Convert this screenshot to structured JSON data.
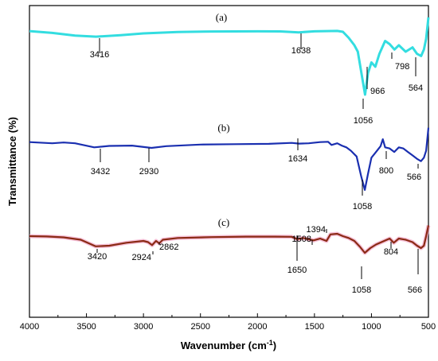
{
  "chart_data": {
    "type": "line",
    "title": "",
    "xlabel": "Wavenumber (cm",
    "xlabel_sup": "-1",
    "xlabel_close": ")",
    "ylabel": "Transmittance (%)",
    "xlim": [
      4000,
      500
    ],
    "x_reversed": true,
    "x_ticks": [
      "4000",
      "3500",
      "3000",
      "2500",
      "2000",
      "1500",
      "1000",
      "500"
    ],
    "y_ticks_labeled": false,
    "grid": false,
    "legend": "none",
    "series": [
      {
        "label": "(a)",
        "color": "#33dde0",
        "x": [
          4000,
          3800,
          3600,
          3416,
          3200,
          3000,
          2700,
          2400,
          2000,
          1800,
          1638,
          1500,
          1300,
          1250,
          1200,
          1150,
          1120,
          1080,
          1056,
          1030,
          1000,
          966,
          930,
          880,
          840,
          798,
          760,
          700,
          640,
          600,
          564,
          540,
          520,
          500
        ],
        "y": [
          0.8,
          2.5,
          5.0,
          6.0,
          4.6,
          3.0,
          1.7,
          1.2,
          1.0,
          1.1,
          2.0,
          1.0,
          0.7,
          1.5,
          7.0,
          14.0,
          20.0,
          45.0,
          60.0,
          40.0,
          30.0,
          34.0,
          22.0,
          10.0,
          13.0,
          18.0,
          14.0,
          20.0,
          16.0,
          22.0,
          24.0,
          18.0,
          8.0,
          -12.0
        ],
        "peak_labels": [
          "3416",
          "1638",
          "966",
          "1056",
          "798",
          "564"
        ]
      },
      {
        "label": "(b)",
        "color": "#1a2fb0",
        "x": [
          4000,
          3800,
          3700,
          3600,
          3432,
          3300,
          3100,
          2930,
          2800,
          2500,
          2200,
          1900,
          1700,
          1634,
          1550,
          1450,
          1380,
          1350,
          1300,
          1260,
          1220,
          1180,
          1130,
          1090,
          1058,
          1030,
          1000,
          960,
          920,
          900,
          880,
          840,
          800,
          760,
          720,
          680,
          640,
          600,
          566,
          540,
          520,
          500
        ],
        "y": [
          0.5,
          1.5,
          0.8,
          1.5,
          5.0,
          3.8,
          3.5,
          5.5,
          4.0,
          2.6,
          2.3,
          2.0,
          1.2,
          1.8,
          1.5,
          0.5,
          0.2,
          3.0,
          1.5,
          3.5,
          5.0,
          8.0,
          13.0,
          30.0,
          42.0,
          28.0,
          14.0,
          9.0,
          4.0,
          -2.0,
          5.0,
          6.0,
          9.0,
          5.0,
          6.0,
          9.0,
          12.0,
          15.0,
          17.0,
          14.0,
          8.0,
          -12.0
        ],
        "peak_labels": [
          "3432",
          "2930",
          "1634",
          "1058",
          "800",
          "566"
        ]
      },
      {
        "label": "(c)",
        "color": "#8b2a15",
        "x": [
          4000,
          3850,
          3700,
          3550,
          3420,
          3300,
          3150,
          3000,
          2960,
          2924,
          2890,
          2862,
          2830,
          2700,
          2400,
          2100,
          1850,
          1700,
          1650,
          1600,
          1508,
          1450,
          1394,
          1360,
          1300,
          1250,
          1200,
          1150,
          1100,
          1058,
          1010,
          960,
          900,
          840,
          804,
          760,
          700,
          640,
          600,
          566,
          540,
          520,
          500
        ],
        "y": [
          0.0,
          0.3,
          1.0,
          3.0,
          8.5,
          8.0,
          5.5,
          4.0,
          5.0,
          7.5,
          4.0,
          6.0,
          3.0,
          1.5,
          0.8,
          0.4,
          0.4,
          0.5,
          2.5,
          1.5,
          3.5,
          2.0,
          4.0,
          -1.5,
          -2.0,
          0.0,
          1.5,
          4.0,
          9.0,
          14.0,
          10.0,
          7.0,
          4.5,
          2.0,
          5.5,
          2.0,
          3.0,
          5.0,
          8.0,
          10.0,
          8.0,
          0.0,
          -9.0
        ],
        "peak_labels": [
          "3420",
          "2924",
          "2862",
          "1650",
          "1508",
          "1394",
          "1058",
          "804",
          "566"
        ]
      }
    ]
  }
}
